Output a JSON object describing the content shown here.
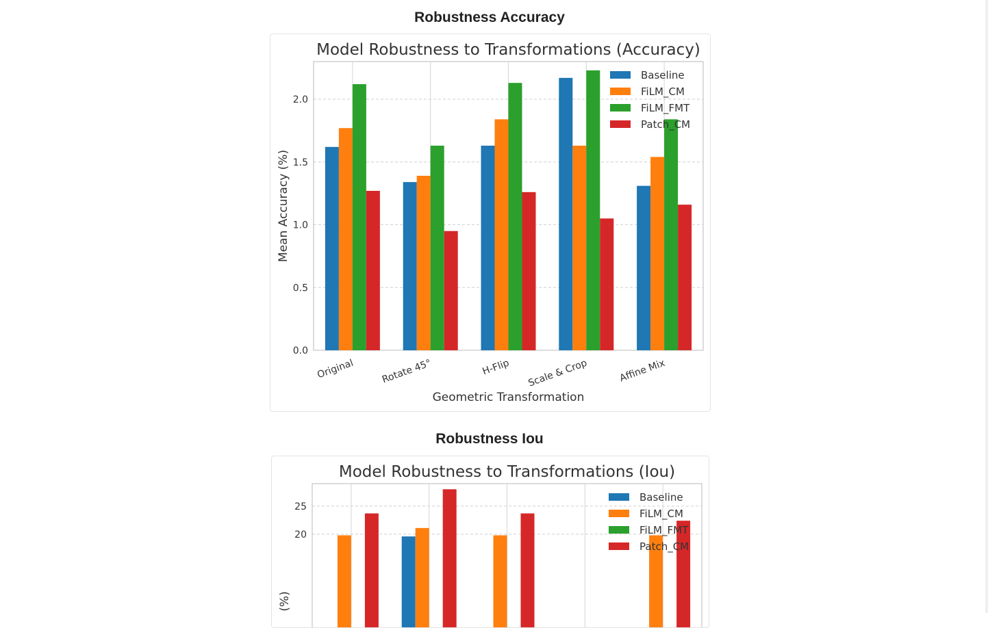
{
  "sections": [
    {
      "heading": "Robustness Accuracy",
      "chart_data": {
        "type": "bar",
        "title": "Model Robustness to Transformations (Accuracy)",
        "xlabel": "Geometric Transformation",
        "ylabel": "Mean Accuracy (%)",
        "categories": [
          "Original",
          "Rotate 45°",
          "H-Flip",
          "Scale & Crop",
          "Affine Mix"
        ],
        "ylim": [
          0,
          2.3
        ],
        "yticks": [
          0.0,
          0.5,
          1.0,
          1.5,
          2.0
        ],
        "ytick_labels": [
          "0.0",
          "0.5",
          "1.0",
          "1.5",
          "2.0"
        ],
        "grid": true,
        "legend": "top-right",
        "series": [
          {
            "name": "Baseline",
            "color": "#1f77b4",
            "values": [
              1.62,
              1.34,
              1.63,
              2.17,
              1.31
            ]
          },
          {
            "name": "FiLM_CM",
            "color": "#ff7f0e",
            "values": [
              1.77,
              1.39,
              1.84,
              1.63,
              1.54
            ]
          },
          {
            "name": "FiLM_FMT",
            "color": "#2ca02c",
            "values": [
              2.12,
              1.63,
              2.13,
              2.23,
              1.84
            ]
          },
          {
            "name": "Patch_CM",
            "color": "#d62728",
            "values": [
              1.27,
              0.95,
              1.26,
              1.05,
              1.16
            ]
          }
        ]
      }
    },
    {
      "heading": "Robustness Iou",
      "chart_data": {
        "type": "bar",
        "title": "Model Robustness to Transformations (Iou)",
        "xlabel": "",
        "ylabel": "(%)",
        "categories": [
          "",
          "",
          "",
          "",
          ""
        ],
        "ylim": [
          0,
          29
        ],
        "yticks": [
          20,
          25
        ],
        "ytick_labels": [
          "20",
          "25"
        ],
        "grid": true,
        "legend": "top-right",
        "series": [
          {
            "name": "Baseline",
            "color": "#1f77b4",
            "values": [
              null,
              19.6,
              null,
              null,
              null
            ]
          },
          {
            "name": "FiLM_CM",
            "color": "#ff7f0e",
            "values": [
              19.8,
              21.1,
              19.8,
              null,
              19.8
            ]
          },
          {
            "name": "FiLM_FMT",
            "color": "#2ca02c",
            "values": [
              null,
              null,
              null,
              null,
              null
            ]
          },
          {
            "name": "Patch_CM",
            "color": "#d62728",
            "values": [
              23.7,
              28.0,
              23.7,
              null,
              22.4
            ]
          }
        ]
      }
    }
  ]
}
